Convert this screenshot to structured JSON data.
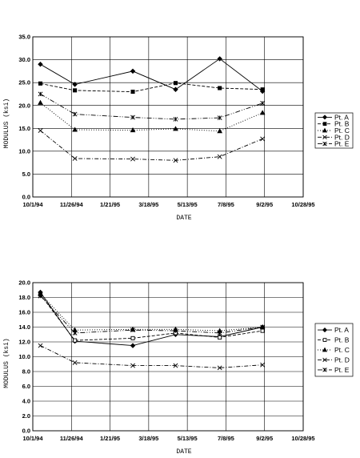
{
  "chart_data": [
    {
      "type": "line",
      "title": "",
      "xlabel": "DATE",
      "ylabel": "MODULUS (ksi)",
      "x_ticks": [
        "10/1/94",
        "11/26/94",
        "1/21/95",
        "3/18/95",
        "5/13/95",
        "7/8/95",
        "9/2/95",
        "10/28/95"
      ],
      "x_tick_dates": [
        "1994-10-01",
        "1994-11-26",
        "1995-01-21",
        "1995-03-18",
        "1995-05-13",
        "1995-07-08",
        "1995-09-02",
        "1995-10-28"
      ],
      "y_ticks": [
        "0.0",
        "5.0",
        "10.0",
        "15.0",
        "20.0",
        "25.0",
        "30.0",
        "35.0"
      ],
      "xlim": [
        "1994-10-01",
        "1995-10-28"
      ],
      "ylim": [
        0,
        35
      ],
      "grid": true,
      "legend_position": "right",
      "x": [
        "1994-10-12",
        "1994-12-01",
        "1995-02-23",
        "1995-04-26",
        "1995-06-29",
        "1995-08-30"
      ],
      "series": [
        {
          "name": "Pt. A",
          "marker": "diamond",
          "dash": "",
          "values": [
            29.0,
            24.6,
            27.5,
            23.5,
            30.2,
            23.1
          ]
        },
        {
          "name": "Pt. B",
          "marker": "square",
          "dash": "4,2",
          "values": [
            24.8,
            23.3,
            23.0,
            24.9,
            23.8,
            23.5
          ]
        },
        {
          "name": "Pt. C",
          "marker": "triangle",
          "dash": "1,2",
          "values": [
            20.6,
            14.7,
            14.6,
            14.9,
            14.4,
            18.4
          ]
        },
        {
          "name": "Pt. D",
          "marker": "x",
          "dash": "5,2,1,2",
          "values": [
            14.5,
            8.4,
            8.3,
            8.0,
            8.8,
            12.7
          ]
        },
        {
          "name": "Pt. E",
          "marker": "star",
          "dash": "6,2,1,2,1,2",
          "values": [
            22.5,
            18.1,
            17.4,
            17.0,
            17.3,
            20.5
          ]
        }
      ]
    },
    {
      "type": "line",
      "title": "",
      "xlabel": "DATE",
      "ylabel": "MODULUS (ksi)",
      "x_ticks": [
        "10/1/94",
        "11/26/94",
        "1/21/95",
        "3/18/95",
        "5/13/95",
        "7/8/95",
        "9/2/95",
        "10/28/95"
      ],
      "x_tick_dates": [
        "1994-10-01",
        "1994-11-26",
        "1995-01-21",
        "1995-03-18",
        "1995-05-13",
        "1995-07-08",
        "1995-09-02",
        "1995-10-28"
      ],
      "y_ticks": [
        "0.0",
        "2.0",
        "4.0",
        "6.0",
        "8.0",
        "10.0",
        "12.0",
        "14.0",
        "16.0",
        "18.0",
        "20.0"
      ],
      "xlim": [
        "1994-10-01",
        "1995-10-28"
      ],
      "ylim": [
        0,
        20
      ],
      "grid": true,
      "legend_position": "right",
      "x": [
        "1994-10-12",
        "1994-12-01",
        "1995-02-23",
        "1995-04-26",
        "1995-06-29",
        "1995-08-30"
      ],
      "series": [
        {
          "name": "Pt. A",
          "marker": "diamond",
          "dash": "",
          "values": [
            18.7,
            12.1,
            11.5,
            13.0,
            12.7,
            14.0
          ]
        },
        {
          "name": "Pt. B",
          "marker": "open-square",
          "dash": "4,2",
          "values": [
            18.4,
            12.2,
            12.5,
            13.2,
            12.6,
            13.5
          ]
        },
        {
          "name": "Pt. C",
          "marker": "triangle",
          "dash": "1,2",
          "values": [
            18.5,
            13.6,
            13.7,
            13.7,
            13.5,
            14.0
          ]
        },
        {
          "name": "Pt. D",
          "marker": "x",
          "dash": "5,2,1,2",
          "values": [
            11.5,
            9.2,
            8.8,
            8.8,
            8.5,
            8.9
          ]
        },
        {
          "name": "Pt. E",
          "marker": "star",
          "dash": "6,2,1,2,1,2",
          "values": [
            18.2,
            13.2,
            13.6,
            13.5,
            13.2,
            14.0
          ]
        }
      ]
    }
  ]
}
